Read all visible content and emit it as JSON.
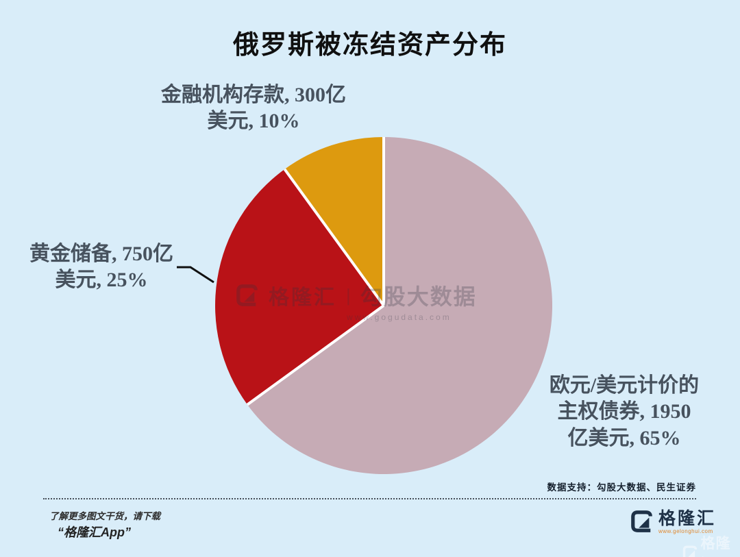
{
  "title": "俄罗斯被冻结资产分布",
  "chart_data": {
    "type": "pie",
    "title": "俄罗斯被冻结资产分布",
    "unit": "亿美元",
    "direction": "clockwise",
    "start_angle": "12-oclock",
    "slices": [
      {
        "id": "sovereign-bonds",
        "name": "欧元/美元计价的主权债券",
        "value": 1950,
        "percent": 65,
        "color": "#c6abb5"
      },
      {
        "id": "gold-reserves",
        "name": "黄金储备",
        "value": 750,
        "percent": 25,
        "color": "#b91217"
      },
      {
        "id": "financial-deposits",
        "name": "金融机构存款",
        "value": 300,
        "percent": 10,
        "color": "#dd9a0f"
      }
    ],
    "separator_color": "#ffffff"
  },
  "callouts": {
    "deposits": {
      "lines": [
        "金融机构存款, 300亿",
        "美元, 10%"
      ]
    },
    "gold": {
      "lines": [
        "黄金储备, 750亿",
        "美元, 25%"
      ]
    },
    "bonds": {
      "lines": [
        "欧元/美元计价的",
        "主权债券, 1950",
        "亿美元, 65%"
      ]
    }
  },
  "watermark_center": {
    "brand": "格隆汇",
    "separator": "|",
    "product": "勾股大数据",
    "url": "www.gogudata.com"
  },
  "footer": {
    "data_support": "数据支持：勾股大数据、民生证券",
    "promo_line1": "了解更多图文干货，请下载",
    "promo_line2": "“格隆汇App”",
    "brand": "格隆汇",
    "brand_url": "www.gelonghui.com"
  },
  "colors": {
    "background": "#d9edf9",
    "title_text": "#101010",
    "callout_text": "#47525e",
    "brand_navy": "#1e3147",
    "brand_orange": "#e0862b"
  }
}
